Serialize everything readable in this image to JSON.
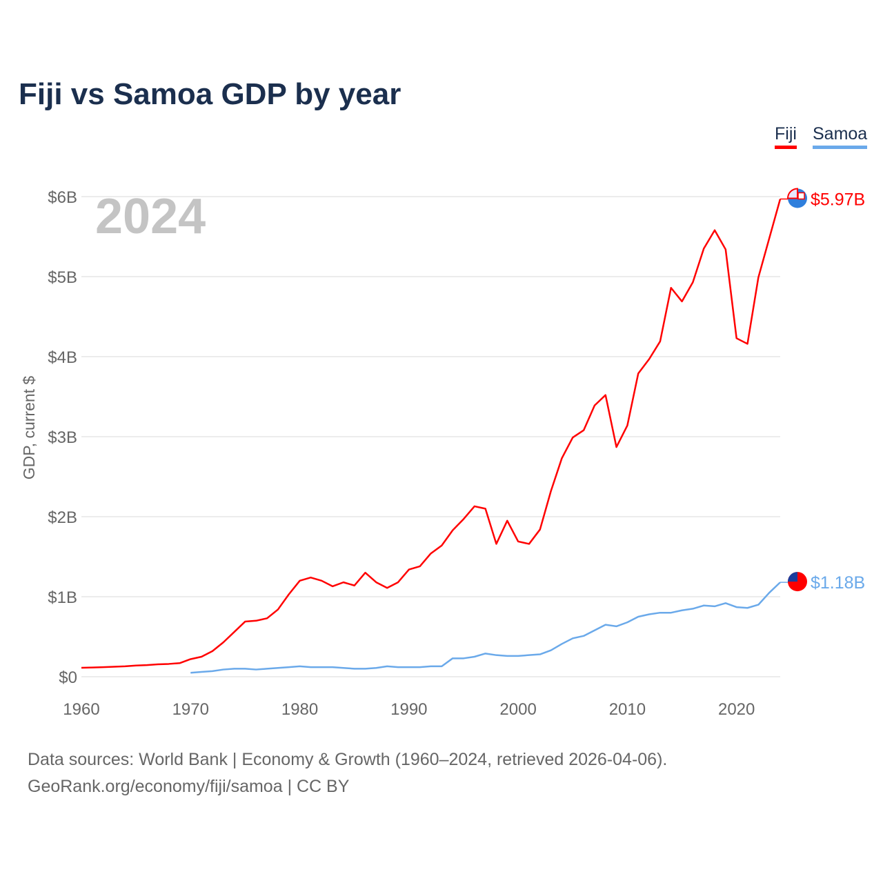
{
  "chart_data": {
    "type": "line",
    "title": "Fiji vs Samoa GDP by year",
    "ylabel": "GDP, current $",
    "xlabel": "",
    "year_label": "2024",
    "xlim": [
      1960,
      2024
    ],
    "ylim": [
      0,
      6
    ],
    "x_ticks": [
      1960,
      1970,
      1980,
      1990,
      2000,
      2010,
      2020
    ],
    "y_ticks": [
      0,
      1,
      2,
      3,
      4,
      5,
      6
    ],
    "y_tick_labels": [
      "$0",
      "$1B",
      "$2B",
      "$3B",
      "$4B",
      "$5B",
      "$6B"
    ],
    "grid": true,
    "legend_position": "top-right",
    "series": [
      {
        "name": "Fiji",
        "color": "#ff0000",
        "start_year": 1960,
        "end_label": "$5.97B",
        "flag_icon": "fiji-flag-icon",
        "values": [
          0.112,
          0.115,
          0.12,
          0.125,
          0.13,
          0.14,
          0.145,
          0.155,
          0.16,
          0.17,
          0.22,
          0.25,
          0.32,
          0.43,
          0.56,
          0.69,
          0.7,
          0.73,
          0.84,
          1.03,
          1.2,
          1.24,
          1.2,
          1.13,
          1.18,
          1.14,
          1.3,
          1.18,
          1.11,
          1.18,
          1.34,
          1.38,
          1.54,
          1.64,
          1.83,
          1.97,
          2.13,
          2.1,
          1.66,
          1.95,
          1.69,
          1.66,
          1.84,
          2.32,
          2.73,
          2.99,
          3.08,
          3.39,
          3.52,
          2.87,
          3.14,
          3.79,
          3.97,
          4.19,
          4.86,
          4.69,
          4.93,
          5.35,
          5.58,
          5.34,
          4.23,
          4.16,
          4.99,
          5.48,
          5.97
        ]
      },
      {
        "name": "Samoa",
        "color": "#6aa9ea",
        "start_year": 1970,
        "end_label": "$1.18B",
        "flag_icon": "samoa-flag-icon",
        "values": [
          0.05,
          0.06,
          0.07,
          0.09,
          0.1,
          0.1,
          0.09,
          0.1,
          0.11,
          0.12,
          0.13,
          0.12,
          0.12,
          0.12,
          0.11,
          0.1,
          0.1,
          0.11,
          0.13,
          0.12,
          0.12,
          0.12,
          0.13,
          0.13,
          0.23,
          0.23,
          0.25,
          0.29,
          0.27,
          0.26,
          0.26,
          0.27,
          0.28,
          0.33,
          0.41,
          0.48,
          0.51,
          0.58,
          0.65,
          0.63,
          0.68,
          0.75,
          0.78,
          0.8,
          0.8,
          0.83,
          0.85,
          0.89,
          0.88,
          0.92,
          0.87,
          0.86,
          0.9,
          1.05,
          1.18
        ]
      }
    ]
  },
  "footer": {
    "line1": "Data sources: World Bank | Economy & Growth (1960–2024, retrieved 2026-04-06).",
    "line2": "GeoRank.org/economy/fiji/samoa | CC BY"
  }
}
